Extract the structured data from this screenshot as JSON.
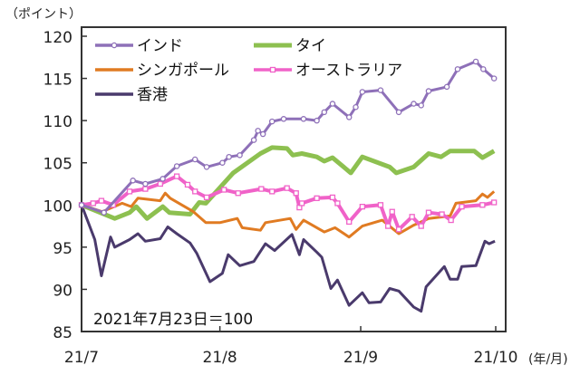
{
  "chart_data": {
    "type": "line",
    "title": "",
    "ylabel": "（ポイント）",
    "xlabel": "(年/月)",
    "annotation": "2021年7月23日＝100",
    "ylim": [
      85,
      120
    ],
    "yticks": [
      85,
      90,
      95,
      100,
      105,
      110,
      115,
      120
    ],
    "xlim": [
      0,
      50
    ],
    "xticks": [
      {
        "label": "21/7",
        "x": 0
      },
      {
        "label": "21/8",
        "x": 16.7
      },
      {
        "label": "21/9",
        "x": 33.7
      },
      {
        "label": "21/10",
        "x": 50
      }
    ],
    "grid": false,
    "legend": "top-left",
    "series": [
      {
        "name": "インド",
        "color": "#8e70b8",
        "marker": "circle",
        "points": [
          [
            0,
            100
          ],
          [
            2.7,
            99.1
          ],
          [
            6.2,
            102.9
          ],
          [
            7.7,
            102.5
          ],
          [
            9.8,
            103.1
          ],
          [
            11.5,
            104.6
          ],
          [
            13.7,
            105.4
          ],
          [
            15.1,
            104.5
          ],
          [
            17,
            105
          ],
          [
            17.8,
            105.7
          ],
          [
            19.1,
            105.9
          ],
          [
            20.8,
            107.7
          ],
          [
            21.3,
            108.8
          ],
          [
            21.9,
            108.4
          ],
          [
            23,
            109.9
          ],
          [
            24.4,
            110.2
          ],
          [
            26.8,
            110.2
          ],
          [
            28.4,
            110
          ],
          [
            29.3,
            111
          ],
          [
            30.3,
            112
          ],
          [
            32.3,
            110.4
          ],
          [
            33.1,
            111.6
          ],
          [
            33.9,
            113.4
          ],
          [
            36.1,
            113.6
          ],
          [
            38.3,
            111
          ],
          [
            40.1,
            112
          ],
          [
            41,
            111.8
          ],
          [
            41.9,
            113.5
          ],
          [
            44.1,
            114
          ],
          [
            45.4,
            116.1
          ],
          [
            47.6,
            117
          ],
          [
            48.5,
            116.1
          ],
          [
            49.8,
            115
          ]
        ]
      },
      {
        "name": "タイ",
        "color": "#8dc050",
        "marker": "none",
        "points": [
          [
            0,
            100
          ],
          [
            4,
            98.4
          ],
          [
            5.8,
            99.1
          ],
          [
            6.6,
            99.8
          ],
          [
            7.9,
            98.4
          ],
          [
            9.8,
            99.8
          ],
          [
            10.6,
            99.1
          ],
          [
            13.1,
            98.9
          ],
          [
            14.2,
            100.3
          ],
          [
            15,
            100.2
          ],
          [
            18.3,
            103.8
          ],
          [
            21.6,
            106.1
          ],
          [
            23,
            106.8
          ],
          [
            24.8,
            106.7
          ],
          [
            25.5,
            105.9
          ],
          [
            26.6,
            106.1
          ],
          [
            28.4,
            105.7
          ],
          [
            29.3,
            105.2
          ],
          [
            30.3,
            105.6
          ],
          [
            32.5,
            103.8
          ],
          [
            33.9,
            105.7
          ],
          [
            37.2,
            104.5
          ],
          [
            38,
            103.8
          ],
          [
            40.1,
            104.5
          ],
          [
            41.9,
            106.1
          ],
          [
            43.4,
            105.7
          ],
          [
            44.5,
            106.4
          ],
          [
            47.4,
            106.4
          ],
          [
            48.4,
            105.6
          ],
          [
            49.8,
            106.4
          ]
        ]
      },
      {
        "name": "シンガポール",
        "color": "#e07b22",
        "marker": "none",
        "points": [
          [
            0,
            100
          ],
          [
            2.5,
            99.2
          ],
          [
            4.9,
            100.2
          ],
          [
            6,
            99.8
          ],
          [
            6.8,
            100.8
          ],
          [
            9.5,
            100.5
          ],
          [
            10.1,
            101.4
          ],
          [
            10.7,
            100.8
          ],
          [
            13.5,
            99.2
          ],
          [
            15,
            97.9
          ],
          [
            16.7,
            97.9
          ],
          [
            18.8,
            98.4
          ],
          [
            19.4,
            97.3
          ],
          [
            21.6,
            97
          ],
          [
            22.2,
            97.9
          ],
          [
            25.2,
            98.4
          ],
          [
            25.9,
            97.1
          ],
          [
            26.8,
            98.2
          ],
          [
            29.3,
            96.8
          ],
          [
            30.6,
            97.3
          ],
          [
            32.3,
            96.2
          ],
          [
            33.9,
            97.5
          ],
          [
            36.3,
            98.2
          ],
          [
            38.3,
            96.6
          ],
          [
            40.1,
            97.6
          ],
          [
            41.9,
            98.4
          ],
          [
            44.5,
            98.7
          ],
          [
            45.2,
            100.2
          ],
          [
            47.6,
            100.5
          ],
          [
            48.4,
            101.3
          ],
          [
            49,
            100.9
          ],
          [
            49.8,
            101.6
          ]
        ]
      },
      {
        "name": "オーストラリア",
        "color": "#f062c8",
        "marker": "square",
        "points": [
          [
            0,
            100
          ],
          [
            1.4,
            100.2
          ],
          [
            2.4,
            100.5
          ],
          [
            3.8,
            100
          ],
          [
            5.8,
            101.6
          ],
          [
            7.7,
            101.9
          ],
          [
            9.5,
            102.5
          ],
          [
            11.5,
            103.4
          ],
          [
            12.8,
            102.4
          ],
          [
            13.7,
            101.6
          ],
          [
            15.1,
            100.9
          ],
          [
            17.2,
            101.8
          ],
          [
            18.9,
            101.4
          ],
          [
            21.7,
            101.9
          ],
          [
            23,
            101.6
          ],
          [
            24.8,
            102
          ],
          [
            25.9,
            101.4
          ],
          [
            26.3,
            99.7
          ],
          [
            26.6,
            100.2
          ],
          [
            28.4,
            100.8
          ],
          [
            30.3,
            100.9
          ],
          [
            30.9,
            100.2
          ],
          [
            32.3,
            98
          ],
          [
            33.9,
            99.8
          ],
          [
            36.1,
            100
          ],
          [
            37,
            97.5
          ],
          [
            37.5,
            99.2
          ],
          [
            38.3,
            97.1
          ],
          [
            39.9,
            98.6
          ],
          [
            41,
            97.5
          ],
          [
            41.9,
            99.1
          ],
          [
            43.5,
            98.9
          ],
          [
            44.6,
            98.2
          ],
          [
            45.9,
            99.8
          ],
          [
            48.4,
            100
          ],
          [
            49.8,
            100.3
          ]
        ]
      },
      {
        "name": "香港",
        "color": "#4a3a6c",
        "marker": "none",
        "points": [
          [
            0,
            100
          ],
          [
            1.6,
            95.9
          ],
          [
            2.4,
            91.6
          ],
          [
            3.5,
            96.2
          ],
          [
            4,
            95
          ],
          [
            5.8,
            95.9
          ],
          [
            6.8,
            96.6
          ],
          [
            7.7,
            95.7
          ],
          [
            9.5,
            96
          ],
          [
            10.4,
            97.4
          ],
          [
            11.5,
            96.6
          ],
          [
            13.1,
            95.5
          ],
          [
            13.9,
            94.3
          ],
          [
            15.5,
            90.9
          ],
          [
            17,
            91.9
          ],
          [
            17.7,
            94.1
          ],
          [
            19.1,
            92.8
          ],
          [
            20.8,
            93.3
          ],
          [
            22.2,
            95.4
          ],
          [
            23.3,
            94.6
          ],
          [
            25.4,
            96.5
          ],
          [
            26.3,
            94.1
          ],
          [
            26.8,
            95.9
          ],
          [
            28.4,
            94.4
          ],
          [
            29,
            93.8
          ],
          [
            30.1,
            90.1
          ],
          [
            30.9,
            91.1
          ],
          [
            32.3,
            88.1
          ],
          [
            33.9,
            89.6
          ],
          [
            34.7,
            88.4
          ],
          [
            36.1,
            88.5
          ],
          [
            37.2,
            90.1
          ],
          [
            38.3,
            89.8
          ],
          [
            40.1,
            87.9
          ],
          [
            41,
            87.4
          ],
          [
            41.6,
            90.3
          ],
          [
            43.8,
            92.7
          ],
          [
            44.5,
            91.2
          ],
          [
            45.4,
            91.2
          ],
          [
            45.9,
            92.7
          ],
          [
            47.6,
            92.8
          ],
          [
            48.7,
            95.7
          ],
          [
            49.2,
            95.4
          ],
          [
            49.9,
            95.7
          ]
        ]
      }
    ]
  }
}
